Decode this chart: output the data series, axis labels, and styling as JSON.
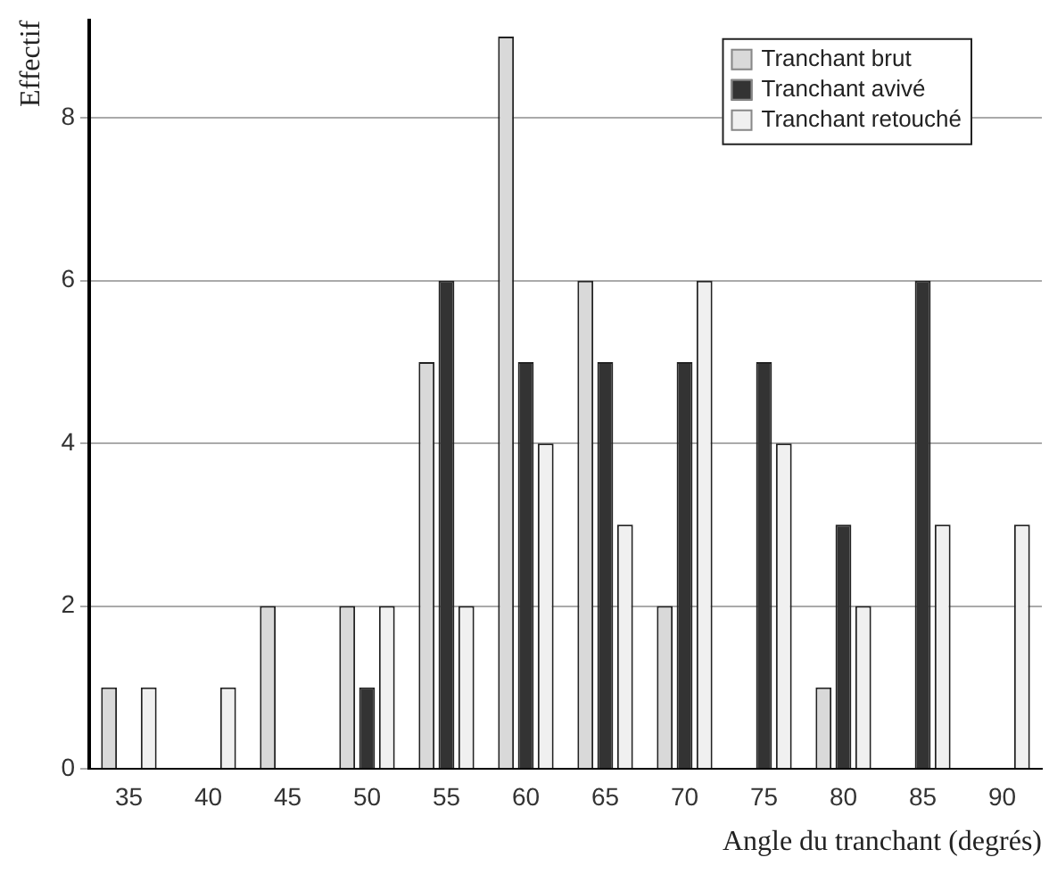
{
  "chart_data": {
    "type": "bar",
    "xlabel": "Angle du tranchant (degrés)",
    "ylabel": "Effectif",
    "categories": [
      "35",
      "40",
      "45",
      "50",
      "55",
      "60",
      "65",
      "70",
      "75",
      "80",
      "85",
      "90"
    ],
    "series": [
      {
        "name": "Tranchant brut",
        "color": "#d9d9d9",
        "values": [
          1,
          0,
          2,
          2,
          5,
          9,
          6,
          2,
          0,
          1,
          0,
          0
        ]
      },
      {
        "name": "Tranchant avivé",
        "color": "#333333",
        "values": [
          0,
          0,
          0,
          1,
          6,
          5,
          5,
          5,
          5,
          3,
          6,
          0
        ]
      },
      {
        "name": "Tranchant retouché",
        "color": "#f0f0f0",
        "values": [
          1,
          1,
          0,
          2,
          2,
          4,
          3,
          6,
          4,
          2,
          3,
          3
        ]
      }
    ],
    "ylim": [
      0,
      9.2
    ],
    "yticks": [
      0,
      2,
      4,
      6,
      8
    ],
    "grid": "y",
    "legend": "top right"
  }
}
